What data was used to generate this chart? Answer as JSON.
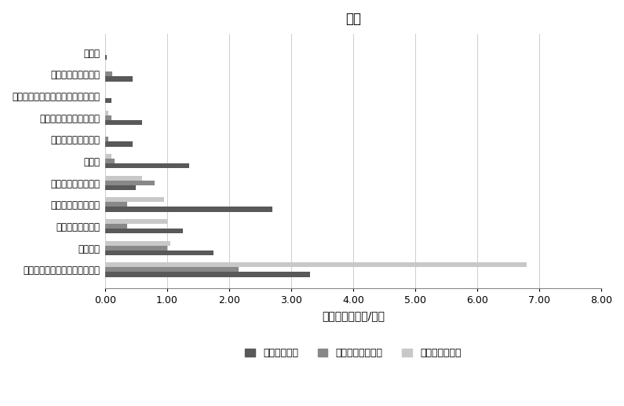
{
  "title": "农村",
  "xlabel": "平均时长（小时/天）",
  "categories": [
    "受教育",
    "社会交往和宗教活动",
    "购物、修车、理发、医疗、去银行等",
    "照顾家人和对外提供帮助",
    "体育锻炼及健身活动",
    "做家务",
    "吃饭及其他饮食活动",
    "工作和工作相关活动",
    "家庭生产经营活动",
    "娱乐休闲",
    "睡眠、个人卫生活动和私密活动"
  ],
  "series": {
    "不与配偶共处": [
      0.02,
      0.45,
      0.1,
      0.6,
      0.45,
      1.35,
      0.5,
      2.7,
      1.25,
      1.75,
      3.3
    ],
    "与配偶及他人共处": [
      0.0,
      0.12,
      0.0,
      0.1,
      0.05,
      0.15,
      0.8,
      0.35,
      0.35,
      1.0,
      2.15
    ],
    "与配偶单独共处": [
      0.0,
      0.0,
      0.0,
      0.05,
      0.0,
      0.1,
      0.6,
      0.95,
      1.0,
      1.05,
      6.8
    ]
  },
  "colors": {
    "不与配偶共处": "#595959",
    "与配偶及他人共处": "#888888",
    "与配偶单独共处": "#c8c8c8"
  },
  "xlim": [
    0,
    8.0
  ],
  "xticks": [
    0.0,
    1.0,
    2.0,
    3.0,
    4.0,
    5.0,
    6.0,
    7.0,
    8.0
  ],
  "xtick_labels": [
    "0.00",
    "1.00",
    "2.00",
    "3.00",
    "4.00",
    "5.00",
    "6.00",
    "7.00",
    "8.00"
  ],
  "background_color": "#ffffff",
  "bar_height": 0.22,
  "legend_labels": [
    "不与配偶共处",
    "与配偶及他人共处",
    "与配偶单独共处"
  ]
}
